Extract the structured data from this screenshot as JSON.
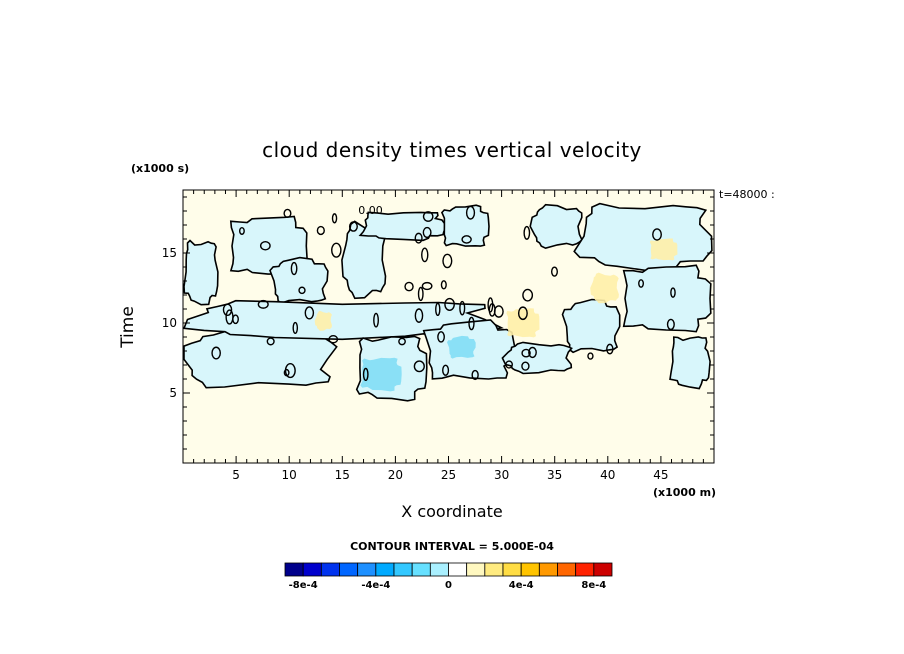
{
  "chart_data": {
    "type": "heatmap",
    "title": "cloud density times vertical velocity",
    "xlabel": "X coordinate",
    "ylabel": "Time",
    "x_unit_label": "(x1000 m)",
    "y_unit_label": "(x1000 s)",
    "time_stamp": "t=48000 :",
    "contour_interval_label": "CONTOUR INTERVAL = 5.000E-04",
    "contour_label": "0.00",
    "xlim": [
      0,
      50
    ],
    "ylim": [
      0,
      19.5
    ],
    "x_ticks": [
      5,
      10,
      15,
      20,
      25,
      30,
      35,
      40,
      45
    ],
    "y_ticks": [
      5,
      10,
      15
    ],
    "colorbar": {
      "colors": [
        "#00008b",
        "#0000cd",
        "#0033ee",
        "#0066ff",
        "#1e90ff",
        "#00aaff",
        "#33c8ff",
        "#66e0ff",
        "#aaf0ff",
        "#ffffff",
        "#fff8c0",
        "#ffeb80",
        "#ffdd44",
        "#ffc400",
        "#ff9900",
        "#ff6600",
        "#ff2200",
        "#cc0000"
      ],
      "tick_labels": [
        "-8e-4",
        "-4e-4",
        "0",
        "4e-4",
        "8e-4"
      ],
      "tick_values": [
        -0.0008,
        -0.0004,
        0,
        0.0004,
        0.0008
      ],
      "range": [
        -0.0009,
        0.0009
      ]
    },
    "background_value": 0,
    "fields": {
      "zero_fill_color": "#fffdea",
      "neg_fill_color": "#d8f6fb",
      "strong_neg_color": "#7ddcf5",
      "pos_fill_color": "#fff0a8"
    },
    "negative_regions": [
      {
        "x": [
          0.2,
          3.2
        ],
        "y": [
          11.5,
          15.8
        ]
      },
      {
        "x": [
          4.5,
          11.5
        ],
        "y": [
          13.5,
          17.5
        ]
      },
      {
        "x": [
          8.5,
          13.5
        ],
        "y": [
          11.5,
          14.5
        ]
      },
      {
        "x": [
          15.2,
          19.0
        ],
        "y": [
          12.0,
          17.0
        ]
      },
      {
        "x": [
          17.0,
          24.5
        ],
        "y": [
          16.0,
          17.9
        ]
      },
      {
        "x": [
          24.5,
          28.7
        ],
        "y": [
          15.5,
          18.3
        ]
      },
      {
        "x": [
          0.2,
          14.0
        ],
        "y": [
          5.5,
          9.3
        ]
      },
      {
        "x": [
          1.0,
          29.0
        ],
        "y": [
          9.0,
          11.5
        ]
      },
      {
        "x": [
          16.5,
          22.8
        ],
        "y": [
          4.6,
          9.0
        ]
      },
      {
        "x": [
          23.0,
          31.0
        ],
        "y": [
          6.0,
          10.0
        ]
      },
      {
        "x": [
          33.0,
          37.5
        ],
        "y": [
          15.5,
          18.3
        ]
      },
      {
        "x": [
          37.5,
          49.5
        ],
        "y": [
          14.0,
          18.4
        ]
      },
      {
        "x": [
          41.5,
          49.5
        ],
        "y": [
          9.5,
          14.0
        ]
      },
      {
        "x": [
          36.0,
          41.0
        ],
        "y": [
          8.0,
          11.5
        ]
      },
      {
        "x": [
          30.5,
          36.5
        ],
        "y": [
          6.5,
          8.5
        ]
      },
      {
        "x": [
          46.0,
          49.5
        ],
        "y": [
          5.5,
          9.0
        ]
      }
    ],
    "strong_negative_regions": [
      {
        "x": [
          16.8,
          20.5
        ],
        "y": [
          5.2,
          7.5
        ]
      },
      {
        "x": [
          25.0,
          27.5
        ],
        "y": [
          7.5,
          9.0
        ]
      }
    ],
    "positive_regions": [
      {
        "x": [
          30.5,
          33.5
        ],
        "y": [
          9.0,
          11.0
        ]
      },
      {
        "x": [
          38.5,
          41.0
        ],
        "y": [
          11.5,
          13.5
        ]
      },
      {
        "x": [
          44.0,
          46.5
        ],
        "y": [
          14.5,
          16.0
        ]
      },
      {
        "x": [
          12.5,
          14.0
        ],
        "y": [
          9.5,
          10.8
        ]
      }
    ]
  }
}
